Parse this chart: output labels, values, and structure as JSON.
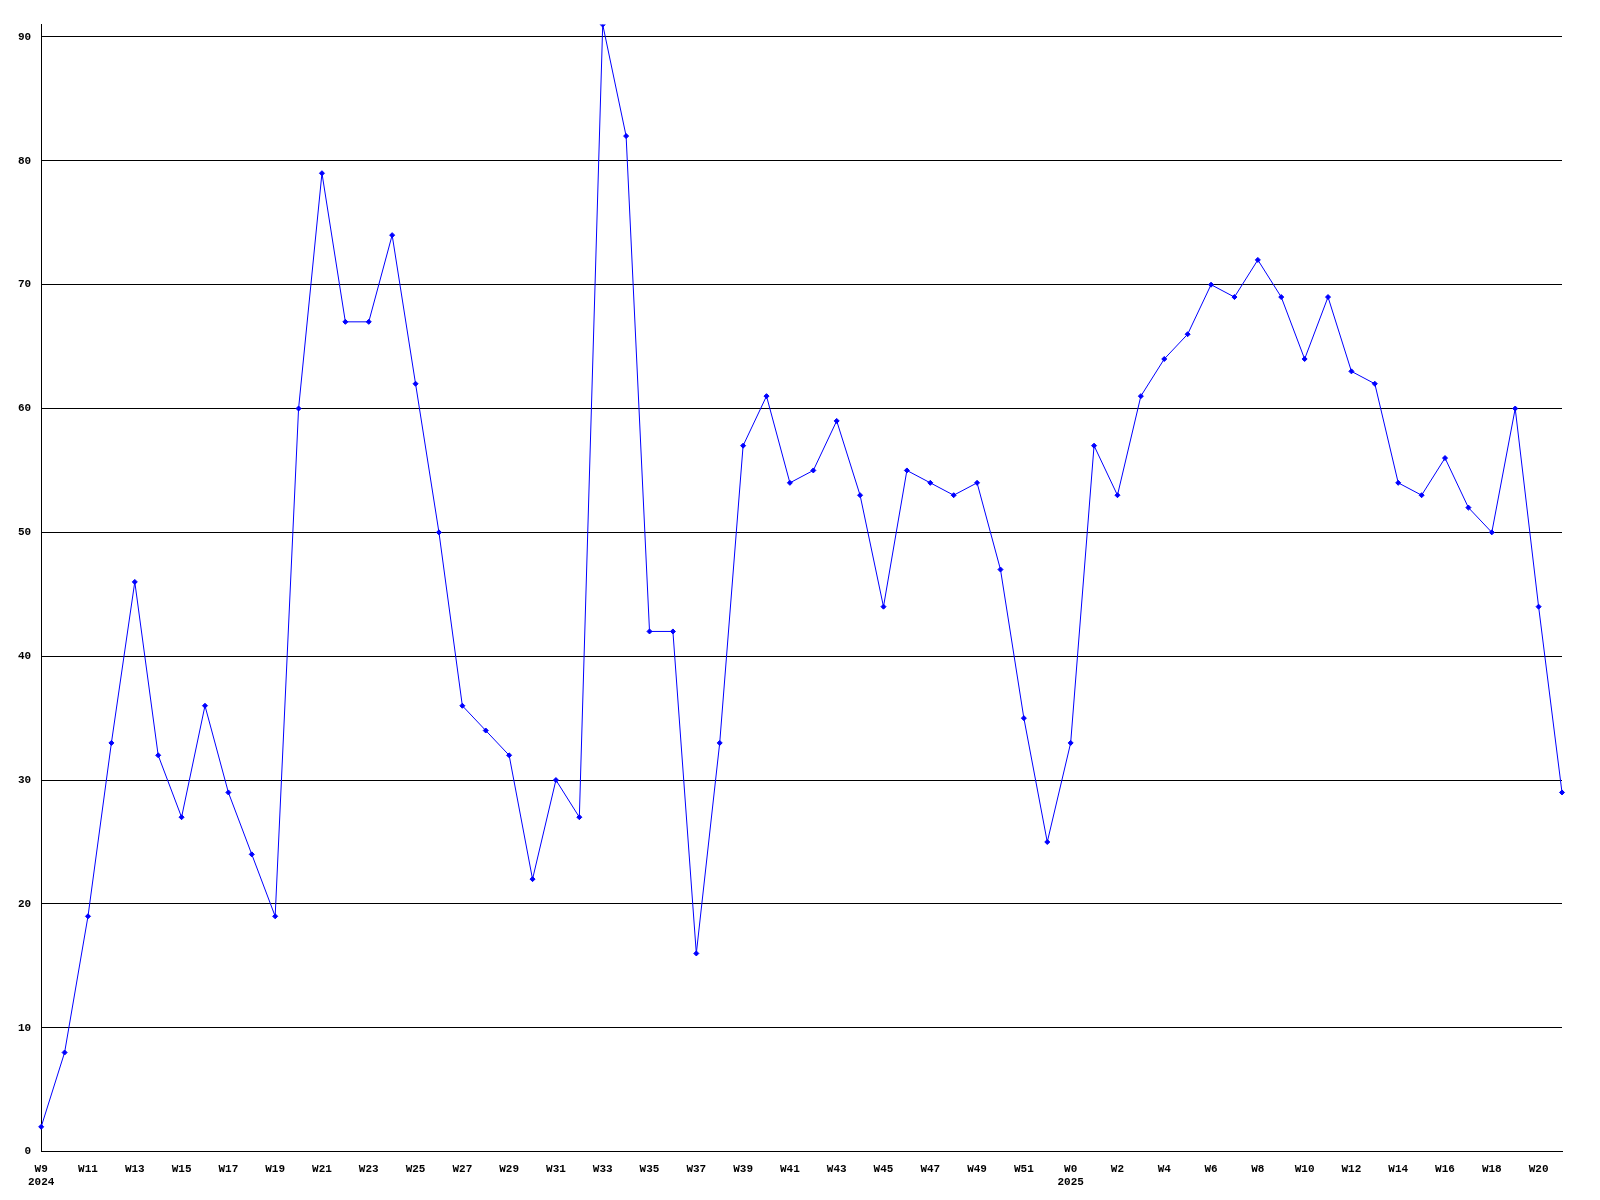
{
  "chart_data": {
    "type": "line",
    "categories": [
      "W9\n2024",
      null,
      "W11",
      null,
      "W13",
      null,
      "W15",
      null,
      "W17",
      null,
      "W19",
      null,
      "W21",
      null,
      "W23",
      null,
      "W25",
      null,
      "W27",
      null,
      "W29",
      null,
      "W31",
      null,
      "W33",
      null,
      "W35",
      null,
      "W37",
      null,
      "W39",
      null,
      "W41",
      null,
      "W43",
      null,
      "W45",
      null,
      "W47",
      null,
      "W49",
      null,
      "W51",
      null,
      "W0\n2025",
      null,
      "W2",
      null,
      "W4",
      null,
      "W6",
      null,
      "W8",
      null,
      "W10",
      null,
      "W12",
      null,
      "W14",
      null,
      "W16",
      null,
      "W18",
      null,
      "W20",
      null
    ],
    "series": [
      {
        "color": "#0000ff",
        "values": [
          2,
          8,
          19,
          33,
          46,
          32,
          27,
          36,
          29,
          24,
          19,
          60,
          79,
          67,
          67,
          74,
          62,
          50,
          36,
          34,
          32,
          22,
          30,
          27,
          91,
          82,
          42,
          42,
          16,
          33,
          57,
          61,
          54,
          55,
          59,
          53,
          44,
          55,
          54,
          53,
          54,
          47,
          35,
          25,
          33,
          57,
          53,
          61,
          64,
          66,
          70,
          69,
          72,
          69,
          64,
          69,
          63,
          62,
          54,
          53,
          56,
          52,
          50,
          60,
          44,
          29
        ]
      }
    ],
    "ylim": [
      0,
      91
    ],
    "yticks": [
      0,
      10,
      20,
      30,
      40,
      50,
      60,
      70,
      80,
      90
    ],
    "grid": "y",
    "marker": "diamond",
    "line_style": "solid",
    "legend": false
  }
}
